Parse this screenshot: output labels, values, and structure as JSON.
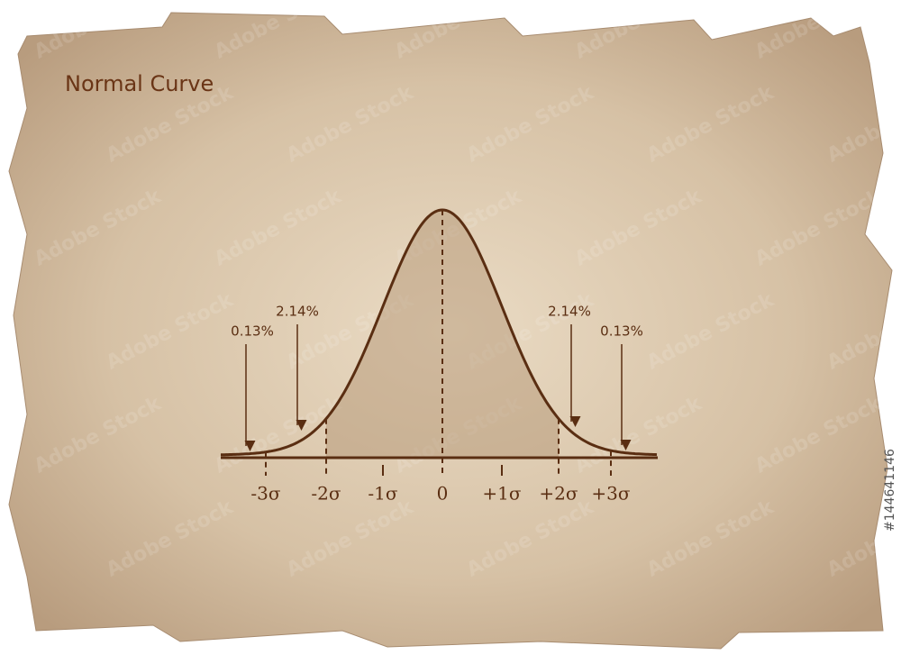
{
  "title": "Normal Curve",
  "axis_labels": [
    "-3σ",
    "-2σ",
    "-1σ",
    "0",
    "+1σ",
    "+2σ",
    "+3σ"
  ],
  "annotations": [
    "0.13%",
    "2.14%",
    "2.14%",
    "0.13%"
  ],
  "watermark": "Adobe Stock",
  "stock_id": "#144641146"
}
